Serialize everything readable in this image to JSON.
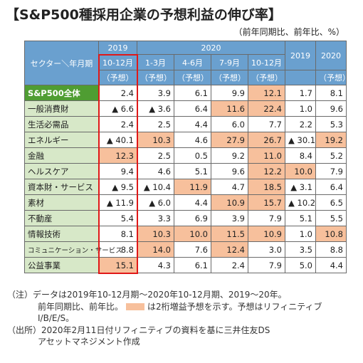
{
  "title": "【S&P500種採用企業の予想利益の伸び率】",
  "unit": "（前年同期比、前年比、%）",
  "colors": {
    "header": "#6aa0cf",
    "row_label": "#d7e8c8",
    "total_row": "#4f9d32",
    "highlight": "#f7c09c",
    "red_box": "#e01818"
  },
  "chart_data": {
    "type": "table",
    "corner_label": "セクター＼年月期",
    "header_years": [
      "2019",
      "2020",
      "2019",
      "2020"
    ],
    "columns": [
      {
        "period": "10-12月",
        "sub": "（予想）"
      },
      {
        "period": "1-3月",
        "sub": "（予想）"
      },
      {
        "period": "4-6月",
        "sub": "（予想）"
      },
      {
        "period": "7-9月",
        "sub": "（予想）"
      },
      {
        "period": "10-12月",
        "sub": "（予想）"
      },
      {
        "period": "",
        "sub": ""
      },
      {
        "period": "",
        "sub": "（予想）"
      }
    ],
    "rows": [
      {
        "sector": "S&P500全体",
        "values": [
          "2.4",
          "3.9",
          "6.1",
          "9.9",
          "12.1",
          "1.7",
          "8.1"
        ],
        "hl": [
          false,
          false,
          false,
          false,
          true,
          false,
          false
        ]
      },
      {
        "sector": "一般消費財",
        "values": [
          "▲ 6.6",
          "▲ 3.6",
          "6.4",
          "11.6",
          "22.4",
          "1.0",
          "9.6"
        ],
        "hl": [
          false,
          false,
          false,
          true,
          true,
          false,
          false
        ]
      },
      {
        "sector": "生活必需品",
        "values": [
          "2.4",
          "2.5",
          "4.4",
          "6.0",
          "7.7",
          "2.2",
          "5.3"
        ],
        "hl": [
          false,
          false,
          false,
          false,
          false,
          false,
          false
        ]
      },
      {
        "sector": "エネルギー",
        "values": [
          "▲ 40.1",
          "10.3",
          "4.6",
          "27.9",
          "26.7",
          "▲ 30.1",
          "19.2"
        ],
        "hl": [
          false,
          true,
          false,
          true,
          true,
          false,
          true
        ]
      },
      {
        "sector": "金融",
        "values": [
          "12.3",
          "2.5",
          "0.5",
          "9.2",
          "11.0",
          "8.4",
          "5.2"
        ],
        "hl": [
          true,
          false,
          false,
          false,
          true,
          false,
          false
        ]
      },
      {
        "sector": "ヘルスケア",
        "values": [
          "9.4",
          "4.6",
          "5.1",
          "9.6",
          "12.2",
          "10.0",
          "7.9"
        ],
        "hl": [
          false,
          false,
          false,
          false,
          true,
          true,
          false
        ]
      },
      {
        "sector": "資本財・サービス",
        "values": [
          "▲ 9.5",
          "▲ 10.4",
          "11.9",
          "4.7",
          "18.5",
          "▲ 3.1",
          "6.4"
        ],
        "hl": [
          false,
          false,
          true,
          false,
          true,
          false,
          false
        ]
      },
      {
        "sector": "素材",
        "values": [
          "▲ 11.9",
          "▲ 6.0",
          "4.4",
          "10.9",
          "15.7",
          "▲ 10.2",
          "6.5"
        ],
        "hl": [
          false,
          false,
          false,
          true,
          true,
          false,
          false
        ]
      },
      {
        "sector": "不動産",
        "values": [
          "5.4",
          "3.3",
          "6.9",
          "3.9",
          "7.9",
          "5.1",
          "5.5"
        ],
        "hl": [
          false,
          false,
          false,
          false,
          false,
          false,
          false
        ]
      },
      {
        "sector": "情報技術",
        "values": [
          "8.1",
          "10.3",
          "10.0",
          "11.5",
          "10.9",
          "1.0",
          "10.8"
        ],
        "hl": [
          false,
          true,
          true,
          true,
          true,
          false,
          true
        ]
      },
      {
        "sector": "コミュニケーション・サービス",
        "values": [
          "8.8",
          "14.0",
          "7.6",
          "12.4",
          "3.0",
          "3.5",
          "8.8"
        ],
        "hl": [
          false,
          true,
          false,
          true,
          false,
          false,
          false
        ]
      },
      {
        "sector": "公益事業",
        "values": [
          "15.1",
          "4.3",
          "6.1",
          "2.4",
          "7.9",
          "5.0",
          "4.4"
        ],
        "hl": [
          true,
          false,
          false,
          false,
          false,
          false,
          false
        ]
      }
    ]
  },
  "notes": {
    "line1": "（注）データは2019年10-12月期～2020年10-12月期、2019～20年。",
    "line2a": "前年同期比、前年比。",
    "line2b": "は2桁増益予想を示す。予想はリフィニティブ",
    "line3": "I/B/E/S。",
    "line4": "（出所）2020年2月11日付リフィニティブの資料を基に三井住友DS",
    "line5": "アセットマネジメント作成"
  }
}
